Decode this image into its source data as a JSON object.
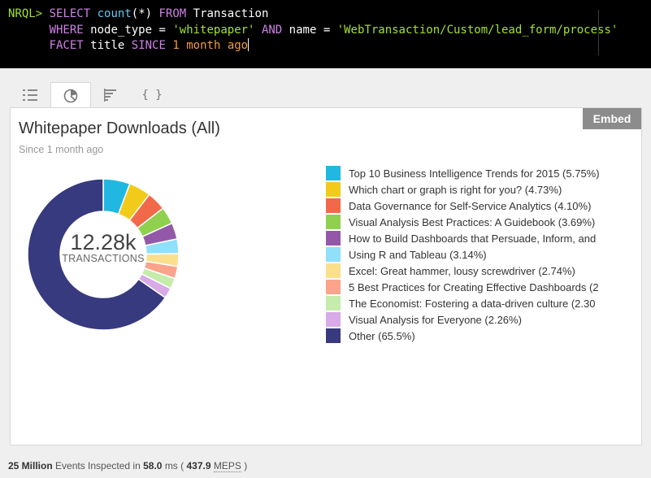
{
  "query": {
    "prompt": "NRQL>",
    "kw_select": "SELECT",
    "fn_count": "count",
    "arg_count": "(*)",
    "kw_from": "FROM",
    "table": "Transaction",
    "kw_where": "WHERE",
    "field1": "node_type",
    "eq1": "=",
    "val1": "'whitepaper'",
    "kw_and": "AND",
    "field2": "name",
    "eq2": "=",
    "val2": "'WebTransaction/Custom/lead_form/process'",
    "kw_facet": "FACET",
    "facet_field": "title",
    "kw_since": "SINCE",
    "since_num": "1",
    "since_unit": "month",
    "kw_ago": "ago"
  },
  "tabs": [
    {
      "name": "list-view",
      "icon": "list-icon",
      "glyph": "☰"
    },
    {
      "name": "pie-chart",
      "icon": "pie-chart-icon",
      "glyph": "◔"
    },
    {
      "name": "bar-chart",
      "icon": "bar-chart-icon",
      "glyph": "≡"
    },
    {
      "name": "json",
      "icon": "braces-icon",
      "glyph": "{ }"
    }
  ],
  "card": {
    "title": "Whitepaper Downloads (All)",
    "subtitle": "Since 1 month ago",
    "embed_label": "Embed",
    "center_value": "12.28k",
    "center_label": "TRANSACTIONS"
  },
  "legend_labels": [
    "Top 10 Business Intelligence Trends for 2015 (5.75%)",
    "Which chart or graph is right for you? (4.73%)",
    "Data Governance for Self-Service Analytics (4.10%)",
    "Visual Analysis Best Practices: A Guidebook (3.69%)",
    "How to Build Dashboards that Persuade, Inform, and",
    "Using R and Tableau (3.14%)",
    "Excel: Great hammer, lousy screwdriver (2.74%)",
    "5 Best Practices for Creating Effective Dashboards (2",
    "The Economist: Fostering a data-driven culture (2.30",
    "Visual Analysis for Everyone (2.26%)",
    "Other (65.5%)"
  ],
  "chart_data": {
    "type": "pie",
    "categories": [
      "Top 10 Business Intelligence Trends for 2015",
      "Which chart or graph is right for you?",
      "Data Governance for Self-Service Analytics",
      "Visual Analysis Best Practices: A Guidebook",
      "How to Build Dashboards that Persuade, Inform, and",
      "Using R and Tableau",
      "Excel: Great hammer, lousy screwdriver",
      "5 Best Practices for Creating Effective Dashboards",
      "The Economist: Fostering a data-driven culture",
      "Visual Analysis for Everyone",
      "Other"
    ],
    "values": [
      5.75,
      4.73,
      4.1,
      3.69,
      3.5,
      3.14,
      2.74,
      2.6,
      2.3,
      2.26,
      65.5
    ],
    "colors": [
      "#20b8e0",
      "#f2ca1a",
      "#f2694a",
      "#8fd14f",
      "#9359a8",
      "#8fe0fa",
      "#fae08c",
      "#fca38c",
      "#c5ecab",
      "#d8aae8",
      "#373a7e"
    ],
    "total_label": "12.28k",
    "title": "Whitepaper Downloads (All)"
  },
  "footer": {
    "events": "25 Million",
    "events_text": "Events Inspected in",
    "time": "58.0",
    "time_unit": "ms (",
    "meps": "437.9",
    "meps_unit": "MEPS",
    "close": ")"
  }
}
